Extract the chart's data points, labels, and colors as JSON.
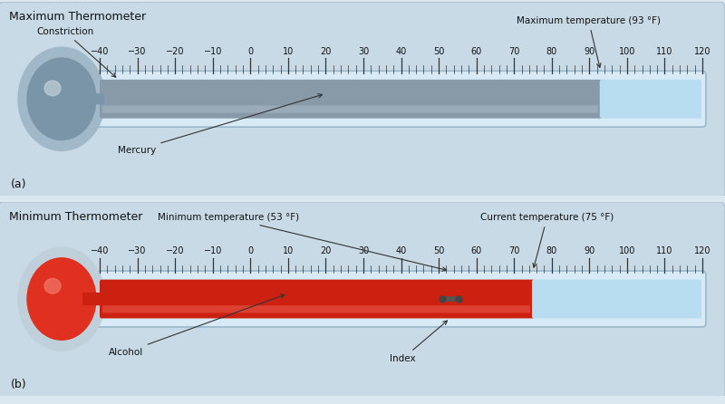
{
  "bg_color": "#dce8f0",
  "panel_bg_a": "#c8dae6",
  "panel_bg_b": "#c8dae6",
  "title_a": "Maximum Thermometer",
  "title_b": "Minimum Thermometer",
  "label_a": "(a)",
  "label_b": "(b)",
  "tick_labels": [
    -40,
    -30,
    -20,
    -10,
    0,
    10,
    20,
    30,
    40,
    50,
    60,
    70,
    80,
    90,
    100,
    110,
    120
  ],
  "max_temp_a": 93,
  "max_temp_label": "Maximum temperature (93 °F)",
  "min_temp_b": 53,
  "min_temp_label": "Minimum temperature (53 °F)",
  "cur_temp_b": 75,
  "cur_temp_label": "Current temperature (75 °F)",
  "mercury_fill_color": "#8899a8",
  "bulb_a_outer": "#a0b8c8",
  "bulb_a_inner": "#7a95a8",
  "bulb_b_outer": "#c0d0da",
  "bulb_b_inner": "#e03020",
  "alcohol_color": "#cc2010",
  "blue_section_color": "#b8ddf0",
  "tube_bg_color": "#d8eaf6",
  "tube_edge_color": "#9ab8cc",
  "ann_color": "#222222",
  "font_size_title": 9,
  "font_size_tick": 7,
  "font_size_label": 9,
  "font_size_ann": 7.5
}
